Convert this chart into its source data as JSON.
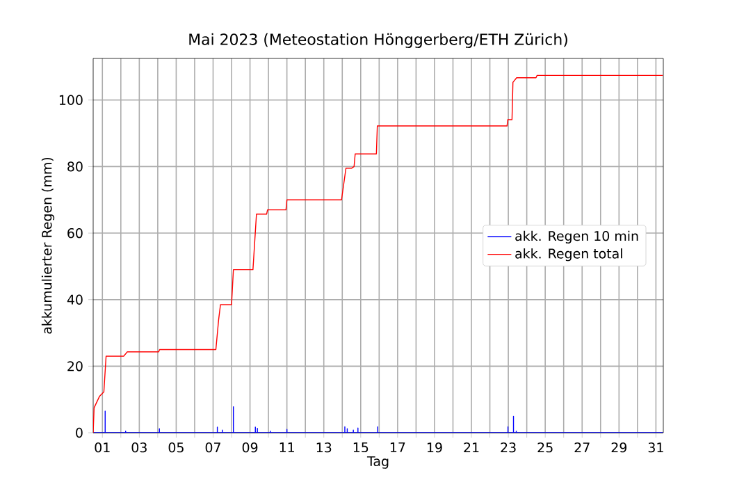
{
  "chart_data": {
    "type": "line",
    "title": "Mai 2023  (Meteostation Hönggerberg/ETH Zürich)",
    "xlabel": "Tag",
    "ylabel": "akkumulierter Regen (mm)",
    "series": [
      {
        "name": "akk. Regen 10 min",
        "color": "#0000ff",
        "x": [
          0.5,
          1.15,
          1.15,
          1.15,
          2.26,
          2.26,
          2.26,
          4.09,
          4.09,
          4.09,
          7.23,
          7.23,
          7.23,
          7.5,
          7.5,
          7.5,
          8.1,
          8.1,
          8.1,
          9.29,
          9.29,
          9.29,
          9.4,
          9.4,
          9.4,
          10.1,
          10.1,
          10.1,
          11.0,
          11.0,
          11.0,
          14.14,
          14.14,
          14.14,
          14.27,
          14.27,
          14.27,
          14.6,
          14.6,
          14.6,
          14.85,
          14.85,
          14.85,
          15.92,
          15.92,
          15.92,
          22.98,
          22.98,
          22.98,
          23.28,
          23.28,
          23.28,
          23.43,
          23.43,
          23.43,
          31.37
        ],
        "values": [
          0,
          0,
          6.5,
          0,
          0,
          0.5,
          0,
          0,
          1.2,
          0,
          0,
          1.7,
          0,
          0,
          0.8,
          0,
          0,
          7.8,
          0,
          0,
          1.7,
          0,
          0,
          1.3,
          0,
          0,
          0.5,
          0,
          0,
          1.0,
          0,
          0,
          1.8,
          0,
          0,
          1.2,
          0,
          0,
          0.8,
          0,
          0,
          1.4,
          0,
          0,
          1.8,
          0,
          0,
          1.8,
          0,
          0,
          4.9,
          0,
          0,
          0.5,
          0,
          0
        ]
      },
      {
        "name": "akk. Regen total",
        "color": "#ff0000",
        "x": [
          0.5,
          0.55,
          0.85,
          1.08,
          1.2,
          2.15,
          2.35,
          4.05,
          4.1,
          7.15,
          7.3,
          7.4,
          8.0,
          8.1,
          9.16,
          9.35,
          9.9,
          9.95,
          10.95,
          11.0,
          13.96,
          14.2,
          14.5,
          14.64,
          14.7,
          15.85,
          15.9,
          22.93,
          22.97,
          23.2,
          23.25,
          23.45,
          24.5,
          24.56,
          31.37
        ],
        "values": [
          0,
          7.5,
          11,
          12.3,
          23,
          23,
          24.3,
          24.3,
          25,
          25,
          34,
          38.5,
          38.5,
          49,
          49,
          65.7,
          65.7,
          67,
          67,
          70,
          70,
          79.5,
          79.5,
          80,
          83.8,
          83.8,
          92.2,
          92.2,
          94.1,
          94.1,
          105.3,
          106.7,
          106.7,
          107.4,
          107.4
        ]
      }
    ],
    "xlim": [
      0.5,
      31.4
    ],
    "ylim": [
      0,
      112.5
    ],
    "xticks": [
      {
        "value": 1,
        "label": "01"
      },
      {
        "value": 2,
        "label": null
      },
      {
        "value": 3,
        "label": "03"
      },
      {
        "value": 4,
        "label": null
      },
      {
        "value": 5,
        "label": "05"
      },
      {
        "value": 6,
        "label": null
      },
      {
        "value": 7,
        "label": "07"
      },
      {
        "value": 8,
        "label": null
      },
      {
        "value": 9,
        "label": "09"
      },
      {
        "value": 10,
        "label": null
      },
      {
        "value": 11,
        "label": "11"
      },
      {
        "value": 12,
        "label": null
      },
      {
        "value": 13,
        "label": "13"
      },
      {
        "value": 14,
        "label": null
      },
      {
        "value": 15,
        "label": "15"
      },
      {
        "value": 16,
        "label": null
      },
      {
        "value": 17,
        "label": "17"
      },
      {
        "value": 18,
        "label": null
      },
      {
        "value": 19,
        "label": "19"
      },
      {
        "value": 20,
        "label": null
      },
      {
        "value": 21,
        "label": "21"
      },
      {
        "value": 22,
        "label": null
      },
      {
        "value": 23,
        "label": "23"
      },
      {
        "value": 24,
        "label": null
      },
      {
        "value": 25,
        "label": "25"
      },
      {
        "value": 26,
        "label": null
      },
      {
        "value": 27,
        "label": "27"
      },
      {
        "value": 28,
        "label": null
      },
      {
        "value": 29,
        "label": "29"
      },
      {
        "value": 30,
        "label": null
      },
      {
        "value": 31,
        "label": "31"
      }
    ],
    "yticks": [
      0,
      20,
      40,
      60,
      80,
      100
    ],
    "grid": true,
    "legend": "right",
    "line_style": "solid",
    "marker": "none"
  }
}
